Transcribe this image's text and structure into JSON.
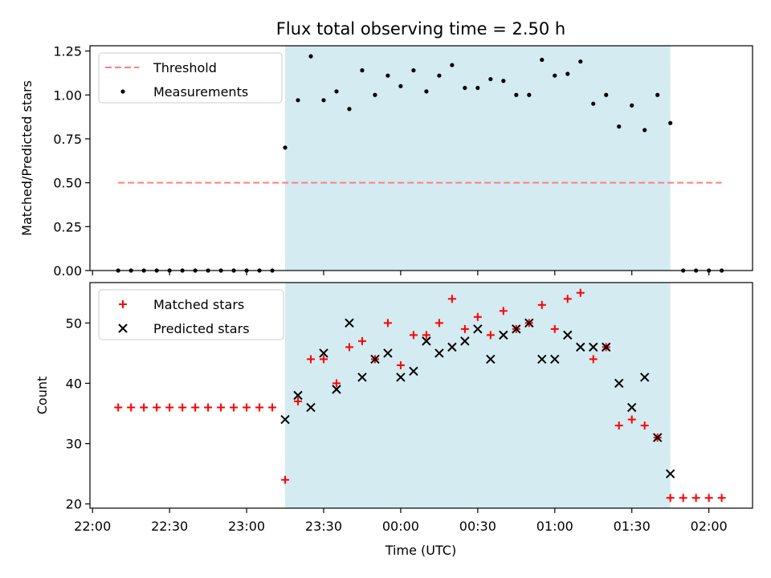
{
  "chart_data": {
    "title": "Flux total observing time = 2.50 h",
    "xlabel": "Time (UTC)",
    "x_tick_labels": [
      "22:00",
      "22:30",
      "23:00",
      "23:30",
      "00:00",
      "00:30",
      "01:00",
      "01:30",
      "02:00"
    ],
    "x_ticks_minutes": [
      0,
      30,
      60,
      90,
      120,
      150,
      180,
      210,
      240
    ],
    "xlim_minutes": [
      -1,
      257
    ],
    "shaded_interval_minutes": [
      75,
      225
    ],
    "shade_color": "#d4ebf1",
    "panels": [
      {
        "type": "scatter",
        "ylabel": "Matched/Predicted stars",
        "ylim": [
          0,
          1.28
        ],
        "y_ticks": [
          0,
          0.25,
          0.5,
          0.75,
          1.0,
          1.25
        ],
        "y_tick_labels": [
          "0.00",
          "0.25",
          "0.50",
          "0.75",
          "1.00",
          "1.25"
        ],
        "legend": [
          "Threshold",
          "Measurements"
        ],
        "legend_position": "top-left",
        "threshold": {
          "name": "Threshold",
          "y": 0.5,
          "x_range": [
            10,
            245
          ],
          "color": "#ff7f7f",
          "style": "dashed"
        },
        "series": [
          {
            "name": "Measurements",
            "marker": "dot",
            "color": "#000000",
            "x": [
              10,
              15,
              20,
              25,
              30,
              35,
              40,
              45,
              50,
              55,
              60,
              65,
              70,
              75,
              80,
              85,
              90,
              95,
              100,
              105,
              110,
              115,
              120,
              125,
              130,
              135,
              140,
              145,
              150,
              155,
              160,
              165,
              170,
              175,
              180,
              185,
              190,
              195,
              200,
              205,
              210,
              215,
              220,
              225,
              230,
              235,
              240,
              245
            ],
            "y": [
              0,
              0,
              0,
              0,
              0,
              0,
              0,
              0,
              0,
              0,
              0,
              0,
              0,
              0.7,
              0.97,
              1.22,
              0.97,
              1.02,
              0.92,
              1.14,
              1.0,
              1.11,
              1.05,
              1.14,
              1.02,
              1.11,
              1.17,
              1.04,
              1.04,
              1.09,
              1.08,
              1.0,
              1.0,
              1.2,
              1.11,
              1.12,
              1.19,
              0.95,
              1.0,
              0.82,
              0.94,
              0.8,
              1.0,
              0.84,
              0,
              0,
              0,
              0
            ]
          }
        ]
      },
      {
        "type": "scatter",
        "ylabel": "Count",
        "ylim": [
          19.3,
          56.7
        ],
        "y_ticks": [
          20,
          30,
          40,
          50
        ],
        "y_tick_labels": [
          "20",
          "30",
          "40",
          "50"
        ],
        "legend": [
          "Matched stars",
          "Predicted stars"
        ],
        "legend_position": "top-left",
        "series": [
          {
            "name": "Matched stars",
            "marker": "plus",
            "color": "#ff0000",
            "x": [
              10,
              15,
              20,
              25,
              30,
              35,
              40,
              45,
              50,
              55,
              60,
              65,
              70,
              75,
              80,
              85,
              90,
              95,
              100,
              105,
              110,
              115,
              120,
              125,
              130,
              135,
              140,
              145,
              150,
              155,
              160,
              165,
              170,
              175,
              180,
              185,
              190,
              195,
              200,
              205,
              210,
              215,
              220,
              225,
              230,
              235,
              240,
              245
            ],
            "y": [
              36,
              36,
              36,
              36,
              36,
              36,
              36,
              36,
              36,
              36,
              36,
              36,
              36,
              24,
              37,
              44,
              44,
              40,
              46,
              47,
              44,
              50,
              43,
              48,
              48,
              50,
              54,
              49,
              51,
              48,
              52,
              49,
              50,
              53,
              49,
              54,
              55,
              44,
              46,
              33,
              34,
              33,
              31,
              21,
              21,
              21,
              21,
              21
            ]
          },
          {
            "name": "Predicted stars",
            "marker": "x",
            "color": "#000000",
            "x": [
              75,
              80,
              85,
              90,
              95,
              100,
              105,
              110,
              115,
              120,
              125,
              130,
              135,
              140,
              145,
              150,
              155,
              160,
              165,
              170,
              175,
              180,
              185,
              190,
              195,
              200,
              205,
              210,
              215,
              220,
              225
            ],
            "y": [
              34,
              38,
              36,
              45,
              39,
              50,
              41,
              44,
              45,
              41,
              42,
              47,
              45,
              46,
              47,
              49,
              44,
              48,
              49,
              50,
              44,
              44,
              48,
              46,
              46,
              46,
              40,
              36,
              41,
              31,
              25
            ]
          }
        ]
      }
    ]
  }
}
